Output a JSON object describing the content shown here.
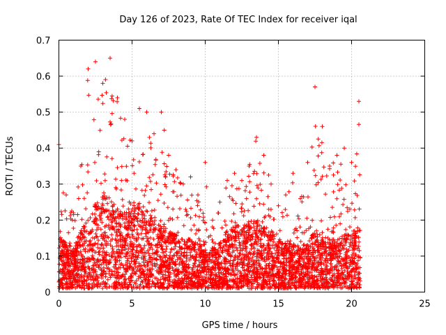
{
  "chart_data": {
    "type": "scatter",
    "title": "Day 126 of 2023, Rate Of TEC Index for receiver iqal",
    "xlabel": "GPS time / hours",
    "ylabel": "ROTI / TECUs",
    "xlim": [
      0,
      25
    ],
    "ylim": [
      0,
      0.7
    ],
    "x_ticks": [
      0,
      5,
      10,
      15,
      20,
      25
    ],
    "x_tick_labels": [
      "0",
      "5",
      "10",
      "15",
      "20",
      "25"
    ],
    "y_ticks": [
      0,
      0.1,
      0.2,
      0.3,
      0.4,
      0.5,
      0.6,
      0.7
    ],
    "y_tick_labels": [
      "0",
      "0.1",
      "0.2",
      "0.3",
      "0.4",
      "0.5",
      "0.6",
      "0.7"
    ],
    "grid": true,
    "legend": "none",
    "marker": "plus",
    "color": "#ff0000",
    "envelope": {
      "x": [
        0,
        0.5,
        1,
        1.5,
        2,
        2.5,
        3,
        3.5,
        4,
        4.5,
        5,
        5.5,
        6,
        6.5,
        7,
        7.5,
        8,
        8.5,
        9,
        9.5,
        10,
        10.5,
        11,
        11.5,
        12,
        12.5,
        13,
        13.5,
        14,
        14.5,
        15,
        15.5,
        16,
        16.5,
        17,
        17.5,
        18,
        18.5,
        19,
        19.5,
        20,
        20.5
      ],
      "y_max": [
        0.41,
        0.27,
        0.22,
        0.35,
        0.62,
        0.64,
        0.58,
        0.65,
        0.54,
        0.48,
        0.42,
        0.51,
        0.5,
        0.44,
        0.5,
        0.38,
        0.34,
        0.3,
        0.32,
        0.27,
        0.36,
        0.2,
        0.25,
        0.31,
        0.33,
        0.31,
        0.35,
        0.43,
        0.38,
        0.3,
        0.24,
        0.27,
        0.33,
        0.26,
        0.36,
        0.57,
        0.46,
        0.35,
        0.38,
        0.4,
        0.36,
        0.53
      ],
      "y_typical": [
        0.13,
        0.11,
        0.1,
        0.14,
        0.17,
        0.2,
        0.22,
        0.21,
        0.19,
        0.17,
        0.19,
        0.2,
        0.19,
        0.17,
        0.15,
        0.14,
        0.13,
        0.12,
        0.12,
        0.11,
        0.11,
        0.1,
        0.11,
        0.14,
        0.15,
        0.15,
        0.16,
        0.16,
        0.15,
        0.14,
        0.12,
        0.11,
        0.11,
        0.1,
        0.11,
        0.14,
        0.13,
        0.12,
        0.12,
        0.13,
        0.13,
        0.16
      ]
    },
    "x_end": 20.6,
    "y_min": 0.01
  }
}
